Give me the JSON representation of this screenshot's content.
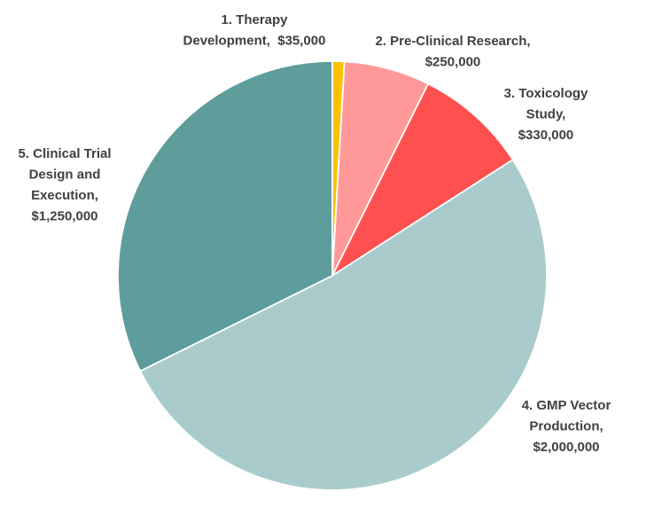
{
  "chart_data": {
    "type": "pie",
    "title": "",
    "start_angle_deg": 0,
    "direction": "clockwise",
    "series": [
      {
        "values": [
          35000,
          250000,
          330000,
          2000000,
          1250000
        ]
      }
    ],
    "slices": [
      {
        "label_lines": [
          "1. Therapy",
          "Development,  $35,000"
        ],
        "value": 35000,
        "color": "#FFC000"
      },
      {
        "label_lines": [
          "2. Pre-Clinical Research,",
          "$250,000"
        ],
        "value": 250000,
        "color": "#FF9999"
      },
      {
        "label_lines": [
          "3. Toxicology",
          "Study,",
          "$330,000"
        ],
        "value": 330000,
        "color": "#FF5050"
      },
      {
        "label_lines": [
          "4. GMP Vector",
          "Production,",
          "$2,000,000"
        ],
        "value": 2000000,
        "color": "#A9CBCB"
      },
      {
        "label_lines": [
          "5. Clinical Trial",
          "Design and",
          "Execution,",
          "$1,250,000"
        ],
        "value": 1250000,
        "color": "#5F9C9C"
      }
    ]
  }
}
